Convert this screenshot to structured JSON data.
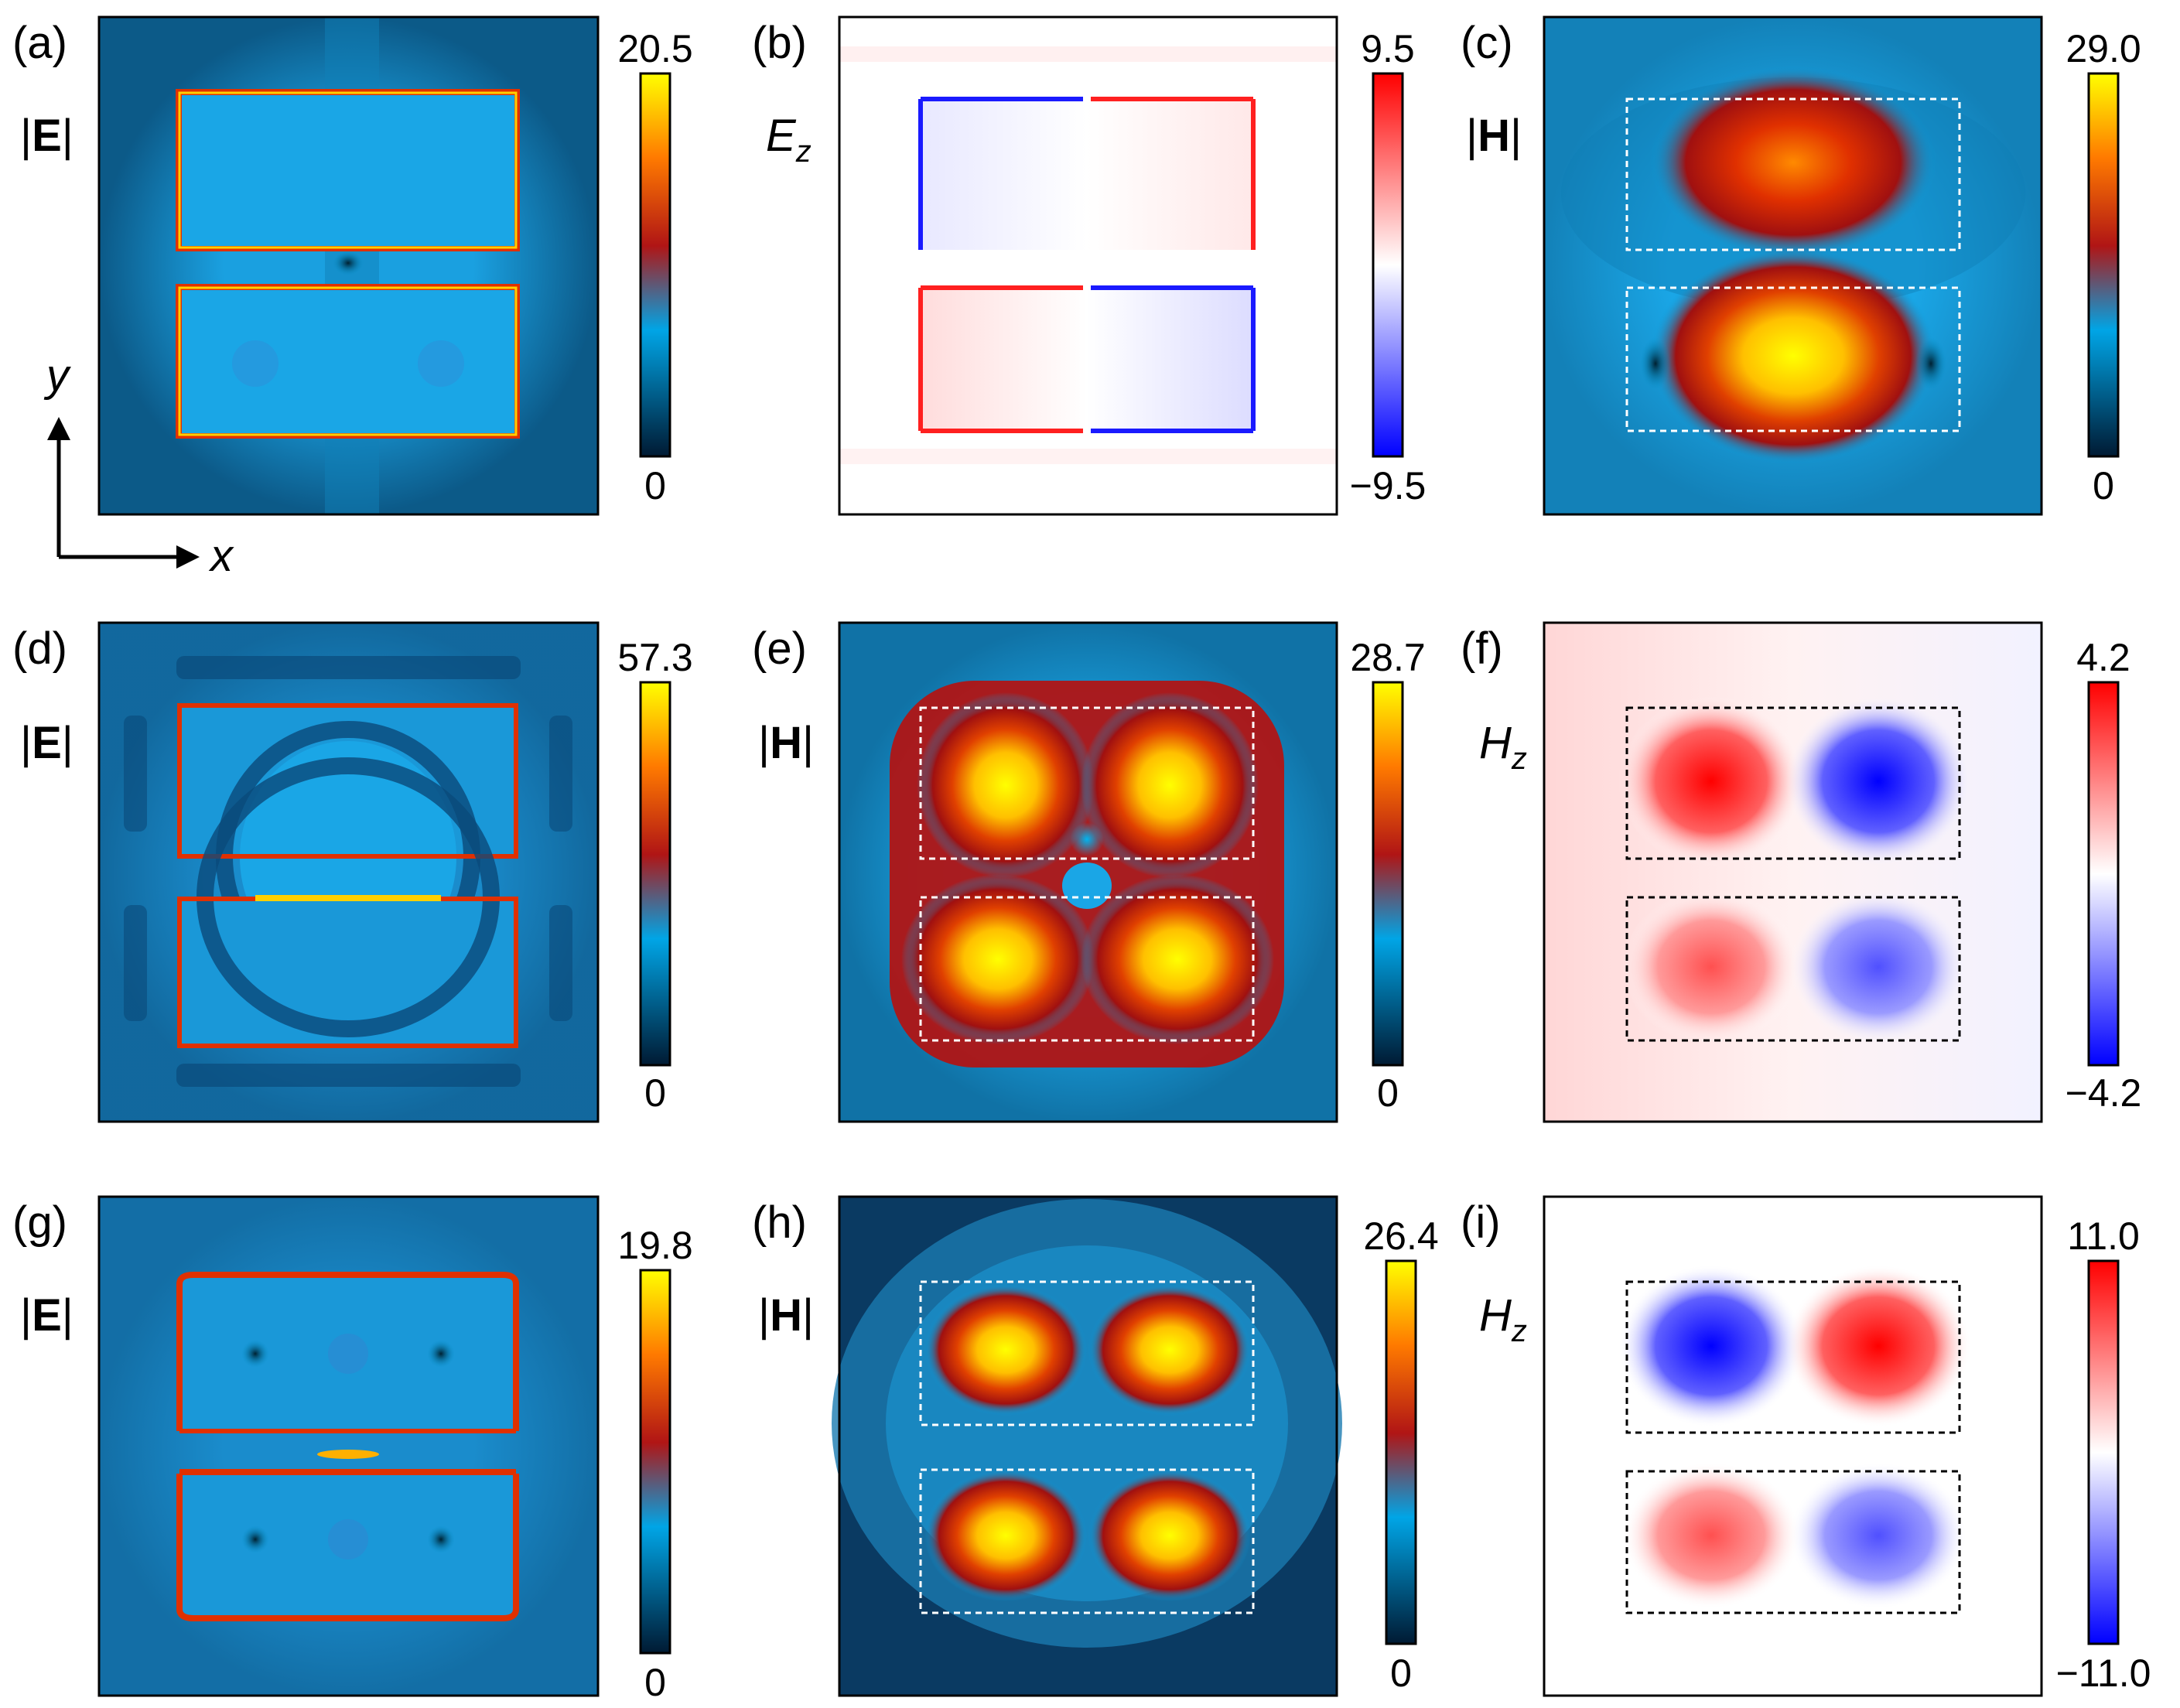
{
  "panels": [
    {
      "id": "a",
      "label": "(a)",
      "quantity": "|E|",
      "cmap": "hot",
      "bg": "light",
      "boxes": "none",
      "cb_max": "20.5",
      "cb_min": "0"
    },
    {
      "id": "b",
      "label": "(b)",
      "quantity": "Ez",
      "cmap": "bwr",
      "bg": "white",
      "boxes": "none",
      "cb_max": "9.5",
      "cb_min": "−9.5"
    },
    {
      "id": "c",
      "label": "(c)",
      "quantity": "|H|",
      "cmap": "hot",
      "bg": "light",
      "boxes": "white",
      "cb_max": "29.0",
      "cb_min": "0"
    },
    {
      "id": "d",
      "label": "(d)",
      "quantity": "|E|",
      "cmap": "hot",
      "bg": "mid",
      "boxes": "none",
      "cb_max": "57.3",
      "cb_min": "0"
    },
    {
      "id": "e",
      "label": "(e)",
      "quantity": "|H|",
      "cmap": "hot",
      "bg": "light",
      "boxes": "white",
      "cb_max": "28.7",
      "cb_min": "0"
    },
    {
      "id": "f",
      "label": "(f)",
      "quantity": "Hz",
      "cmap": "bwr",
      "bg": "white",
      "boxes": "black",
      "cb_max": "4.2",
      "cb_min": "−4.2"
    },
    {
      "id": "g",
      "label": "(g)",
      "quantity": "|E|",
      "cmap": "hot",
      "bg": "mid",
      "boxes": "none",
      "cb_max": "19.8",
      "cb_min": "0"
    },
    {
      "id": "h",
      "label": "(h)",
      "quantity": "|H|",
      "cmap": "hot",
      "bg": "dark",
      "boxes": "white",
      "cb_max": "26.4",
      "cb_min": "0"
    },
    {
      "id": "i",
      "label": "(i)",
      "quantity": "Hz",
      "cmap": "bwr",
      "bg": "white",
      "boxes": "black",
      "cb_max": "11.0",
      "cb_min": "−11.0"
    }
  ],
  "axes": {
    "y_label": "y",
    "x_label": "x"
  },
  "colormaps": {
    "hot": [
      "#001a33",
      "#00a5e6",
      "#b01515",
      "#ff7a00",
      "#ffff00"
    ],
    "bwr": [
      "#0000ff",
      "#ffffff",
      "#ff0000"
    ]
  }
}
